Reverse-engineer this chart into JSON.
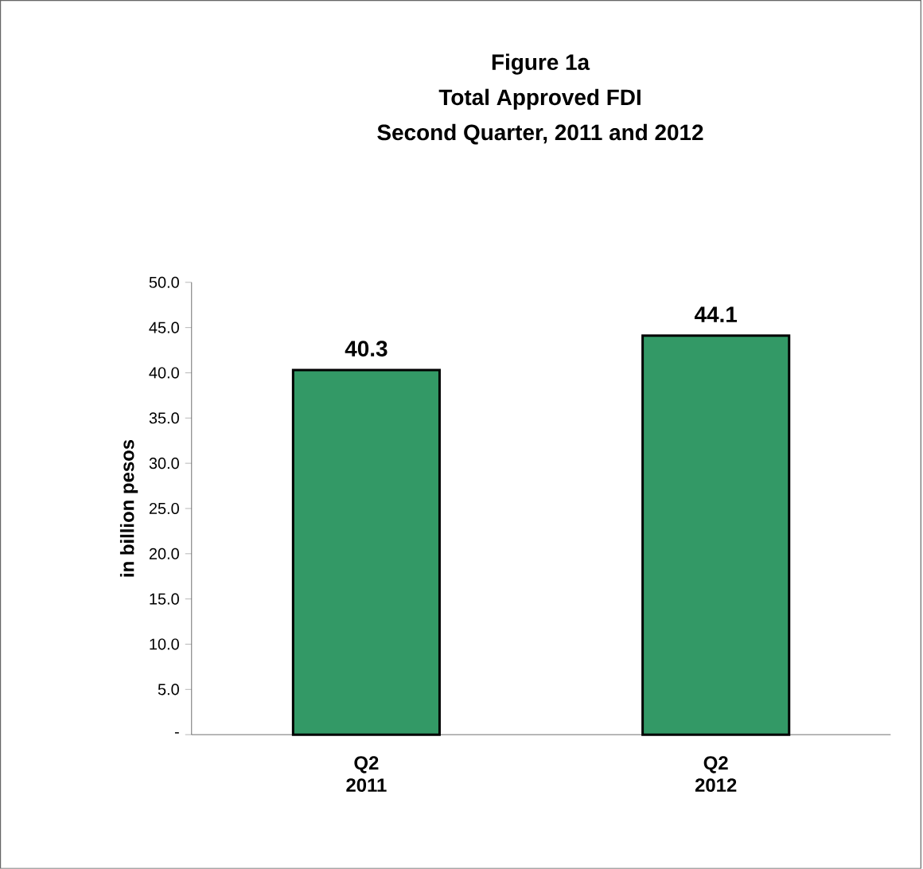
{
  "chart_data": {
    "type": "bar",
    "title": "Figure 1a",
    "subtitle": "Total Approved FDI",
    "annotations": [
      "Second Quarter, 2011 and 2012"
    ],
    "ylabel": "in billion pesos",
    "categories": [
      "Q2 2011",
      "Q2 2012"
    ],
    "values": [
      40.3,
      44.1
    ],
    "colors": [
      "#339966",
      "#339966"
    ],
    "ylim": [
      0,
      50
    ],
    "yticks": [
      {
        "value": 0,
        "label": "-"
      },
      {
        "value": 5,
        "label": "5.0"
      },
      {
        "value": 10,
        "label": "10.0"
      },
      {
        "value": 15,
        "label": "15.0"
      },
      {
        "value": 20,
        "label": "20.0"
      },
      {
        "value": 25,
        "label": "25.0"
      },
      {
        "value": 30,
        "label": "30.0"
      },
      {
        "value": 35,
        "label": "35.0"
      },
      {
        "value": 40,
        "label": "40.0"
      },
      {
        "value": 45,
        "label": "45.0"
      },
      {
        "value": 50,
        "label": "50.0"
      }
    ],
    "data_labels": true
  }
}
